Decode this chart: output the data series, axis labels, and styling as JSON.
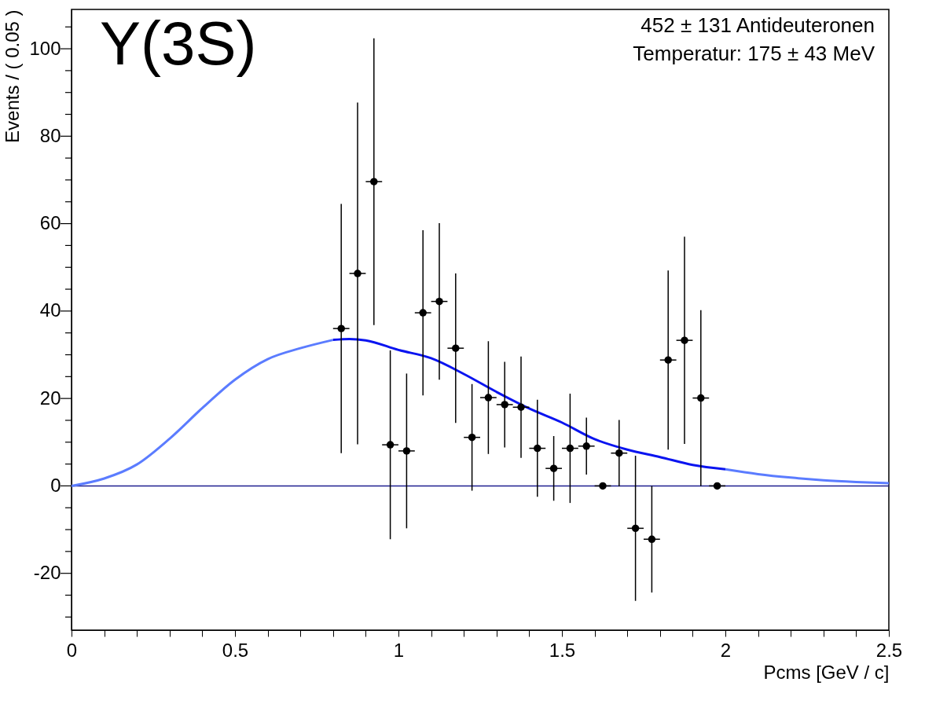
{
  "chart_data": {
    "type": "scatter",
    "xlabel": "Pcms [GeV / c]",
    "ylabel": "Events / ( 0.05 )",
    "annotations": [
      "Y(3S)",
      "452 ± 131 Antideuteronen",
      "Temperatur: 175 ± 43 MeV"
    ],
    "xlim": [
      0,
      2.5
    ],
    "ylim": [
      -33,
      109
    ],
    "xticks": [
      0,
      {
        "value": 0.1,
        "label": null
      },
      {
        "value": 0.2,
        "label": null
      },
      {
        "value": 0.3,
        "label": null
      },
      {
        "value": 0.4,
        "label": null
      },
      0.5,
      {
        "value": 0.6,
        "label": null
      },
      {
        "value": 0.7,
        "label": null
      },
      {
        "value": 0.8,
        "label": null
      },
      {
        "value": 0.9,
        "label": null
      },
      1,
      {
        "value": 1.1,
        "label": null
      },
      {
        "value": 1.2,
        "label": null
      },
      {
        "value": 1.3,
        "label": null
      },
      {
        "value": 1.4,
        "label": null
      },
      1.5,
      {
        "value": 1.6,
        "label": null
      },
      {
        "value": 1.7,
        "label": null
      },
      {
        "value": 1.8,
        "label": null
      },
      {
        "value": 1.9,
        "label": null
      },
      2,
      {
        "value": 2.1,
        "label": null
      },
      {
        "value": 2.2,
        "label": null
      },
      {
        "value": 2.3,
        "label": null
      },
      {
        "value": 2.4,
        "label": null
      },
      2.5
    ],
    "yticks": [
      {
        "value": -30,
        "label": null
      },
      {
        "value": -25,
        "label": null
      },
      -20,
      {
        "value": -15,
        "label": null
      },
      {
        "value": -10,
        "label": null
      },
      {
        "value": -5,
        "label": null
      },
      0,
      {
        "value": 5,
        "label": null
      },
      {
        "value": 10,
        "label": null
      },
      {
        "value": 15,
        "label": null
      },
      20,
      {
        "value": 25,
        "label": null
      },
      {
        "value": 30,
        "label": null
      },
      {
        "value": 35,
        "label": null
      },
      40,
      {
        "value": 45,
        "label": null
      },
      {
        "value": 50,
        "label": null
      },
      {
        "value": 55,
        "label": null
      },
      60,
      {
        "value": 65,
        "label": null
      },
      {
        "value": 70,
        "label": null
      },
      {
        "value": 75,
        "label": null
      },
      80,
      {
        "value": 85,
        "label": null
      },
      {
        "value": 90,
        "label": null
      },
      {
        "value": 95,
        "label": null
      },
      100,
      {
        "value": 105,
        "label": null
      }
    ],
    "grid": false,
    "ref_lines": [
      {
        "axis": "y",
        "value": 0,
        "color": "#1f1f8f"
      }
    ],
    "series": [
      {
        "type": "line",
        "color": "#5b7cff",
        "x": [
          0,
          0.1,
          0.2,
          0.3,
          0.4,
          0.5,
          0.6,
          0.7,
          0.8,
          1.4,
          2.0,
          2.1,
          2.2,
          2.3,
          2.4,
          2.5
        ],
        "values": [
          0,
          1.7,
          4.9,
          10.8,
          17.8,
          24.3,
          29,
          31.5,
          33.4,
          null,
          3.8,
          2.7,
          1.9,
          1.3,
          0.9,
          0.6
        ]
      },
      {
        "type": "line",
        "color": "#0a14f0",
        "x": [
          0.8,
          0.85,
          0.9,
          1.0,
          1.1,
          1.2,
          1.3,
          1.4,
          1.5,
          1.6,
          1.7,
          1.8,
          1.9,
          2.0
        ],
        "values": [
          33.4,
          33.6,
          33.3,
          31.1,
          29.2,
          25.6,
          21.5,
          17.7,
          14.5,
          10.7,
          8.3,
          6.6,
          4.8,
          3.8
        ]
      },
      {
        "color": "#000000",
        "marker": "circle",
        "x": [
          0.825,
          0.875,
          0.925,
          0.975,
          1.025,
          1.075,
          1.125,
          1.175,
          1.225,
          1.275,
          1.325,
          1.375,
          1.425,
          1.475,
          1.525,
          1.575,
          1.625,
          1.675,
          1.725,
          1.775,
          1.825,
          1.875,
          1.925,
          1.975
        ],
        "values": [
          36.0,
          48.6,
          69.6,
          9.4,
          8.0,
          39.6,
          42.2,
          31.5,
          11.1,
          20.2,
          18.6,
          18.0,
          8.6,
          4.0,
          8.6,
          9.1,
          0,
          7.5,
          -9.7,
          -12.2,
          28.8,
          33.3,
          20.1,
          0
        ],
        "errors": [
          28.5,
          39.1,
          32.8,
          21.6,
          17.7,
          18.9,
          17.9,
          17.1,
          12.2,
          12.9,
          9.8,
          11.6,
          11.1,
          7.4,
          12.5,
          6.5,
          0,
          7.6,
          16.6,
          12.2,
          20.5,
          23.7,
          20.1,
          0
        ],
        "xerrors": [
          0.025,
          0.025,
          0.025,
          0.025,
          0.025,
          0.025,
          0.025,
          0.025,
          0.025,
          0.025,
          0.025,
          0.025,
          0.025,
          0.025,
          0.025,
          0.025,
          0.025,
          0.025,
          0.025,
          0.025,
          0.025,
          0.025,
          0.025,
          0.025
        ]
      }
    ]
  }
}
